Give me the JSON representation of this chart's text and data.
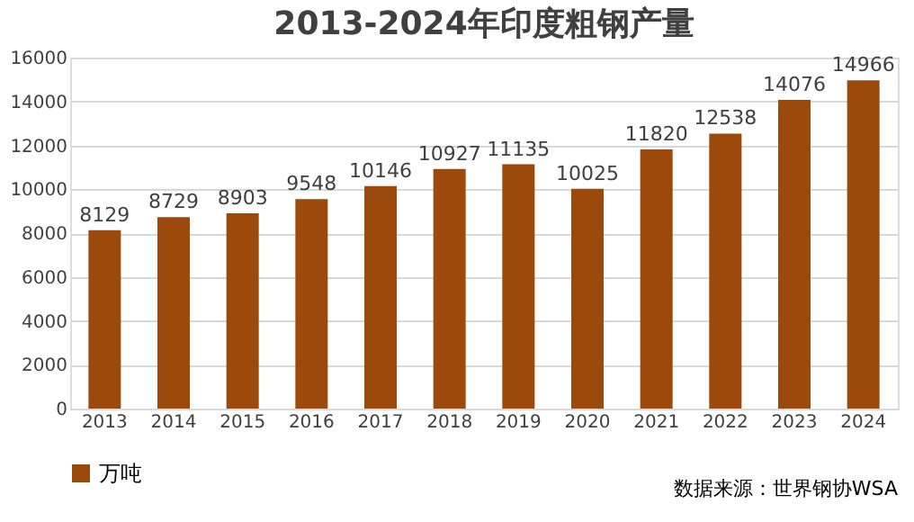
{
  "chart_data": {
    "type": "bar",
    "title": "2013-2024年印度粗钢产量",
    "categories": [
      "2013",
      "2014",
      "2015",
      "2016",
      "2017",
      "2018",
      "2019",
      "2020",
      "2021",
      "2022",
      "2023",
      "2024"
    ],
    "series": [
      {
        "name": "万吨",
        "color": "#9c4a0c",
        "values": [
          8129,
          8729,
          8903,
          9548,
          10146,
          10927,
          11135,
          10025,
          11820,
          12538,
          14076,
          14966
        ]
      }
    ],
    "ylim": [
      0,
      16000
    ],
    "yticks": [
      0,
      2000,
      4000,
      6000,
      8000,
      10000,
      12000,
      14000,
      16000
    ],
    "grid": "y",
    "legend": "bottom left",
    "data_labels": true,
    "annotations": [
      "数据来源：世界钢协WSA"
    ]
  }
}
